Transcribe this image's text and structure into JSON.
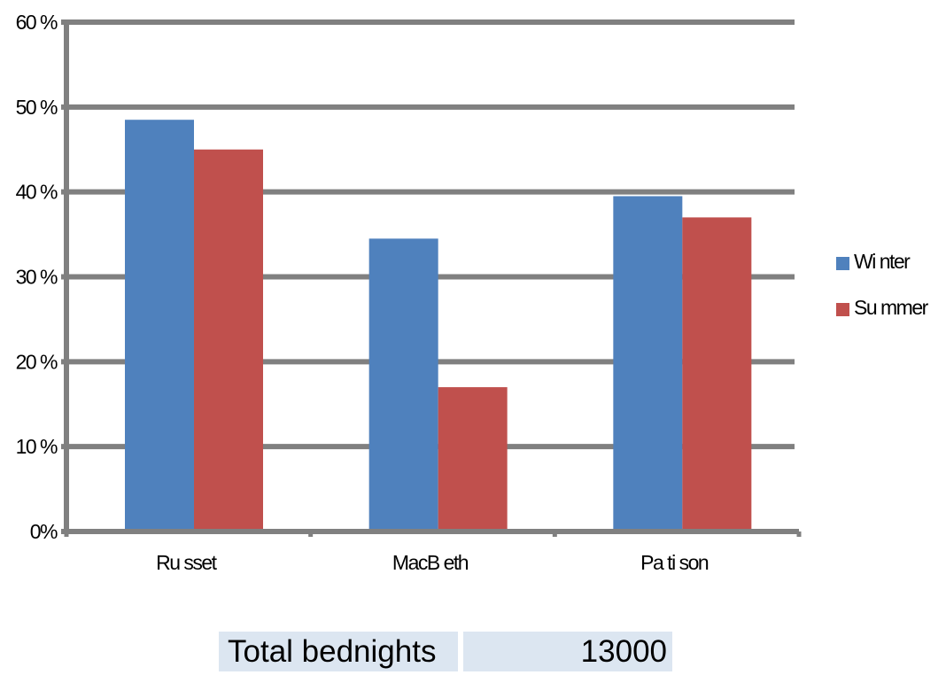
{
  "chart_data": {
    "type": "bar",
    "categories": [
      "Ru sset",
      "MacB eth",
      "Pa ti son"
    ],
    "series": [
      {
        "name": "Wi nter",
        "values": [
          48.5,
          34.5,
          39.5
        ]
      },
      {
        "name": "Su mmer",
        "values": [
          45,
          17,
          37
        ]
      }
    ],
    "yticks": [
      "0%",
      "10 %",
      "20 %",
      "30 %",
      "40 %",
      "50 %",
      "60 %"
    ],
    "ylim": [
      0,
      60
    ],
    "grid": true,
    "legend": "right"
  },
  "colors": {
    "winter": "#4f81bd",
    "summer": "#c0504d",
    "gridline": "#808080",
    "table_fill": "#dce6f1"
  },
  "summary": {
    "label": "Total bednights",
    "value": "13000"
  }
}
